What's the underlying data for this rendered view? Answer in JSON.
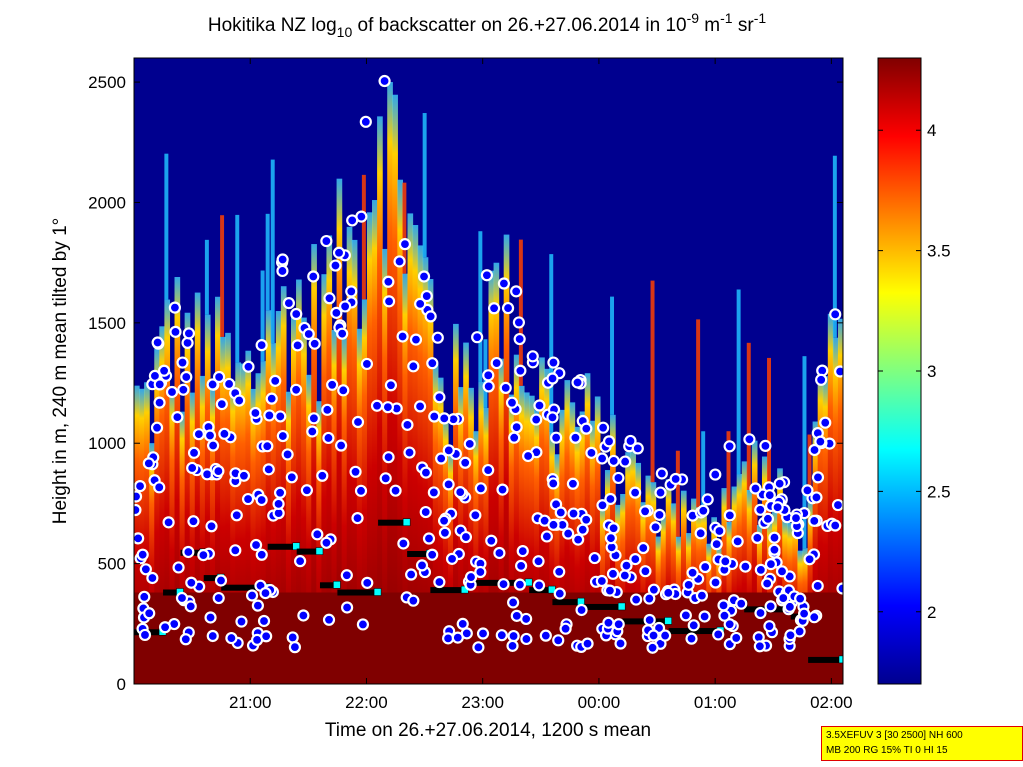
{
  "chart_data": {
    "type": "heatmap",
    "title_parts": {
      "a": "Hokitika NZ log",
      "a_sub": "10",
      "b": " of backscatter on 26.+27.06.2014 in 10",
      "b_sup": "-9",
      "c": " m",
      "c_sup": "-1",
      "d": " sr",
      "d_sup": "-1"
    },
    "xlabel": "Time on 26.+27.06.2014, 1200 s mean",
    "ylabel": "Height in m, 240 m mean tilted by 1°",
    "x_ticks": [
      "21:00",
      "22:00",
      "23:00",
      "00:00",
      "01:00",
      "02:00"
    ],
    "x_tick_hours": [
      21,
      22,
      23,
      24,
      25,
      26
    ],
    "xlim_hours": [
      20.0,
      26.1
    ],
    "ylim": [
      0,
      2600
    ],
    "y_ticks": [
      0,
      500,
      1000,
      1500,
      2000,
      2500
    ],
    "colorbar": {
      "clim": [
        1.7,
        4.3
      ],
      "ticks": [
        2,
        2.5,
        3,
        3.5,
        4
      ],
      "tick_labels": [
        "2",
        "2.5",
        "3",
        "3.5",
        "4"
      ]
    },
    "cloud_top_profile": [
      {
        "t": 20.1,
        "h": 1150
      },
      {
        "t": 20.3,
        "h": 1450
      },
      {
        "t": 20.5,
        "h": 1350
      },
      {
        "t": 20.7,
        "h": 1300
      },
      {
        "t": 20.9,
        "h": 1200
      },
      {
        "t": 21.1,
        "h": 1400
      },
      {
        "t": 21.3,
        "h": 1600
      },
      {
        "t": 21.5,
        "h": 1500
      },
      {
        "t": 21.7,
        "h": 1650
      },
      {
        "t": 21.9,
        "h": 1800
      },
      {
        "t": 22.1,
        "h": 2500
      },
      {
        "t": 22.3,
        "h": 1900
      },
      {
        "t": 22.5,
        "h": 1600
      },
      {
        "t": 22.7,
        "h": 1200
      },
      {
        "t": 22.9,
        "h": 1250
      },
      {
        "t": 23.1,
        "h": 1600
      },
      {
        "t": 23.3,
        "h": 1450
      },
      {
        "t": 23.5,
        "h": 1200
      },
      {
        "t": 23.7,
        "h": 1150
      },
      {
        "t": 23.9,
        "h": 1050
      },
      {
        "t": 24.1,
        "h": 900
      },
      {
        "t": 24.3,
        "h": 850
      },
      {
        "t": 24.5,
        "h": 800
      },
      {
        "t": 24.7,
        "h": 700
      },
      {
        "t": 24.9,
        "h": 650
      },
      {
        "t": 25.1,
        "h": 800
      },
      {
        "t": 25.3,
        "h": 900
      },
      {
        "t": 25.5,
        "h": 750
      },
      {
        "t": 25.7,
        "h": 600
      },
      {
        "t": 25.9,
        "h": 1100
      },
      {
        "t": 26.05,
        "h": 1400
      }
    ],
    "cloud_base_steps": [
      {
        "t0": 20.0,
        "t1": 20.25,
        "h": 215
      },
      {
        "t0": 20.25,
        "t1": 20.4,
        "h": 380
      },
      {
        "t0": 20.4,
        "t1": 20.6,
        "h": 545
      },
      {
        "t0": 20.6,
        "t1": 20.75,
        "h": 440
      },
      {
        "t0": 20.75,
        "t1": 21.15,
        "h": 400
      },
      {
        "t0": 21.15,
        "t1": 21.4,
        "h": 570
      },
      {
        "t0": 21.4,
        "t1": 21.6,
        "h": 550
      },
      {
        "t0": 21.6,
        "t1": 21.75,
        "h": 410
      },
      {
        "t0": 21.75,
        "t1": 22.1,
        "h": 380
      },
      {
        "t0": 22.1,
        "t1": 22.35,
        "h": 670
      },
      {
        "t0": 22.35,
        "t1": 22.55,
        "h": 540
      },
      {
        "t0": 22.55,
        "t1": 22.85,
        "h": 390
      },
      {
        "t0": 22.85,
        "t1": 23.4,
        "h": 420
      },
      {
        "t0": 23.4,
        "t1": 23.6,
        "h": 390
      },
      {
        "t0": 23.6,
        "t1": 23.85,
        "h": 340
      },
      {
        "t0": 23.85,
        "t1": 24.2,
        "h": 320
      },
      {
        "t0": 24.2,
        "t1": 24.6,
        "h": 260
      },
      {
        "t0": 24.6,
        "t1": 25.05,
        "h": 220
      },
      {
        "t0": 25.05,
        "t1": 25.25,
        "h": 330
      },
      {
        "t0": 25.25,
        "t1": 25.65,
        "h": 310
      },
      {
        "t0": 25.65,
        "t1": 25.8,
        "h": 280
      },
      {
        "t0": 25.8,
        "t1": 26.1,
        "h": 100
      }
    ]
  },
  "info_box": {
    "line1": "3.5XEFUV 3 [30 2500] NH 600",
    "line2": "MB 200 RG 15% TI 0 HI 15"
  },
  "colors": {
    "background_low": "#00008f",
    "saturated_high": "#800000",
    "marker_fill": "#0000ff",
    "marker_edge": "#ff00ff",
    "base_marker": "#00ffff"
  }
}
